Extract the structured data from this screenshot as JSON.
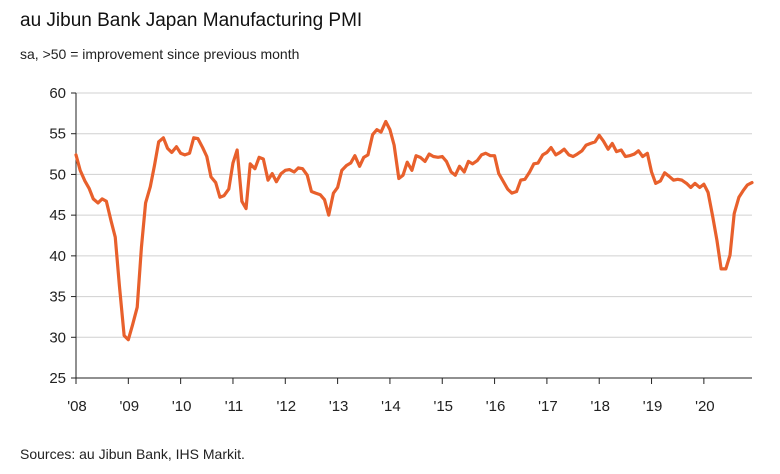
{
  "title": "au Jibun Bank Japan Manufacturing PMI",
  "subtitle": "sa, >50 = improvement since previous month",
  "source": "Sources: au Jibun Bank, IHS Markit.",
  "chart_data": {
    "type": "line",
    "title": "au Jibun Bank Japan Manufacturing PMI",
    "subtitle": "sa, >50 = improvement since previous month",
    "xlabel": "",
    "ylabel": "",
    "ylim": [
      25,
      60
    ],
    "yticks": [
      25,
      30,
      35,
      40,
      45,
      50,
      55,
      60
    ],
    "xlim": [
      2008.0,
      2020.92
    ],
    "xtick_values": [
      2008,
      2009,
      2010,
      2011,
      2012,
      2013,
      2014,
      2015,
      2016,
      2017,
      2018,
      2019,
      2020
    ],
    "xtick_labels": [
      "'08",
      "'09",
      "'10",
      "'11",
      "'12",
      "'13",
      "'14",
      "'15",
      "'16",
      "'17",
      "'18",
      "'19",
      "'20"
    ],
    "grid": true,
    "legend": "none",
    "line_color": "#e8602c",
    "series": [
      {
        "x": [
          2008.0,
          2008.08,
          2008.17,
          2008.25,
          2008.33,
          2008.42,
          2008.5,
          2008.58,
          2008.67,
          2008.75,
          2008.83,
          2008.92,
          2009.0,
          2009.08,
          2009.17,
          2009.25,
          2009.33,
          2009.42,
          2009.5,
          2009.58,
          2009.67,
          2009.75,
          2009.83,
          2009.92,
          2010.0,
          2010.08,
          2010.17,
          2010.25,
          2010.33,
          2010.42,
          2010.5,
          2010.58,
          2010.67,
          2010.75,
          2010.83,
          2010.92,
          2011.0,
          2011.08,
          2011.17,
          2011.25,
          2011.33,
          2011.42,
          2011.5,
          2011.58,
          2011.67,
          2011.75,
          2011.83,
          2011.92,
          2012.0,
          2012.08,
          2012.17,
          2012.25,
          2012.33,
          2012.42,
          2012.5,
          2012.58,
          2012.67,
          2012.75,
          2012.83,
          2012.92,
          2013.0,
          2013.08,
          2013.17,
          2013.25,
          2013.33,
          2013.42,
          2013.5,
          2013.58,
          2013.67,
          2013.75,
          2013.83,
          2013.92,
          2014.0,
          2014.08,
          2014.17,
          2014.25,
          2014.33,
          2014.42,
          2014.5,
          2014.58,
          2014.67,
          2014.75,
          2014.83,
          2014.92,
          2015.0,
          2015.08,
          2015.17,
          2015.25,
          2015.33,
          2015.42,
          2015.5,
          2015.58,
          2015.67,
          2015.75,
          2015.83,
          2015.92,
          2016.0,
          2016.08,
          2016.17,
          2016.25,
          2016.33,
          2016.42,
          2016.5,
          2016.58,
          2016.67,
          2016.75,
          2016.83,
          2016.92,
          2017.0,
          2017.08,
          2017.17,
          2017.25,
          2017.33,
          2017.42,
          2017.5,
          2017.58,
          2017.67,
          2017.75,
          2017.83,
          2017.92,
          2018.0,
          2018.08,
          2018.17,
          2018.25,
          2018.33,
          2018.42,
          2018.5,
          2018.58,
          2018.67,
          2018.75,
          2018.83,
          2018.92,
          2019.0,
          2019.08,
          2019.17,
          2019.25,
          2019.33,
          2019.42,
          2019.5,
          2019.58,
          2019.67,
          2019.75,
          2019.83,
          2019.92,
          2020.0,
          2020.08,
          2020.17,
          2020.25,
          2020.33,
          2020.42,
          2020.5,
          2020.58,
          2020.67,
          2020.75,
          2020.83,
          2020.92
        ],
        "values": [
          52.4,
          50.5,
          49.2,
          48.3,
          47.0,
          46.5,
          47.0,
          46.7,
          44.3,
          42.3,
          36.3,
          30.2,
          29.7,
          31.5,
          33.7,
          41.0,
          46.5,
          48.5,
          51.1,
          54.0,
          54.5,
          53.2,
          52.7,
          53.4,
          52.6,
          52.4,
          52.6,
          54.5,
          54.4,
          53.3,
          52.2,
          49.7,
          49.0,
          47.2,
          47.4,
          48.2,
          51.4,
          53.0,
          46.7,
          45.8,
          51.3,
          50.7,
          52.1,
          51.9,
          49.3,
          50.1,
          49.1,
          50.1,
          50.5,
          50.6,
          50.3,
          50.8,
          50.7,
          49.9,
          47.9,
          47.7,
          47.5,
          46.9,
          45.0,
          47.7,
          48.4,
          50.5,
          51.1,
          51.4,
          52.3,
          51.0,
          52.1,
          52.4,
          54.9,
          55.5,
          55.2,
          56.5,
          55.5,
          53.6,
          49.5,
          49.9,
          51.5,
          50.5,
          52.3,
          52.1,
          51.6,
          52.5,
          52.2,
          52.1,
          52.2,
          51.6,
          50.3,
          49.9,
          51.0,
          50.3,
          51.6,
          51.3,
          51.7,
          52.4,
          52.6,
          52.3,
          52.3,
          50.1,
          49.1,
          48.2,
          47.7,
          47.9,
          49.3,
          49.4,
          50.3,
          51.3,
          51.4,
          52.4,
          52.7,
          53.3,
          52.4,
          52.7,
          53.1,
          52.4,
          52.2,
          52.5,
          52.9,
          53.6,
          53.8,
          54.0,
          54.8,
          54.1,
          53.1,
          53.8,
          52.8,
          53.0,
          52.2,
          52.3,
          52.5,
          52.9,
          52.2,
          52.6,
          50.3,
          48.9,
          49.2,
          50.2,
          49.8,
          49.3,
          49.4,
          49.3,
          48.9,
          48.4,
          48.9,
          48.4,
          48.8,
          47.8,
          44.8,
          41.9,
          38.4,
          38.4,
          40.1,
          45.2,
          47.2,
          48.0,
          48.7,
          49.0
        ]
      }
    ]
  }
}
